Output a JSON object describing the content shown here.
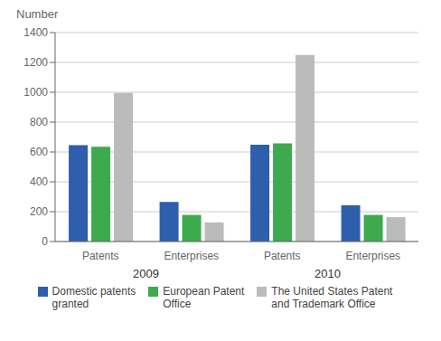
{
  "chart_data": {
    "type": "bar",
    "ylabel": "Number",
    "categories": [
      "Patents",
      "Enterprises",
      "Patents",
      "Enterprises"
    ],
    "annotations": [
      "2009",
      "2010"
    ],
    "series": [
      {
        "name": "Domestic patents\ngranted",
        "color": "#2E5FAC",
        "values": [
          645,
          265,
          648,
          243
        ]
      },
      {
        "name": "European Patent\nOffice",
        "color": "#3DAA4E",
        "values": [
          635,
          178,
          658,
          178
        ]
      },
      {
        "name": "The United States Patent\nand Trademark Office",
        "color": "#BBBBBB",
        "values": [
          995,
          128,
          1250,
          163
        ]
      }
    ],
    "ylim": [
      0,
      1400
    ],
    "yticks": [
      0,
      200,
      400,
      600,
      800,
      1000,
      1200,
      1400
    ],
    "grid": true,
    "legend": "bottom"
  }
}
